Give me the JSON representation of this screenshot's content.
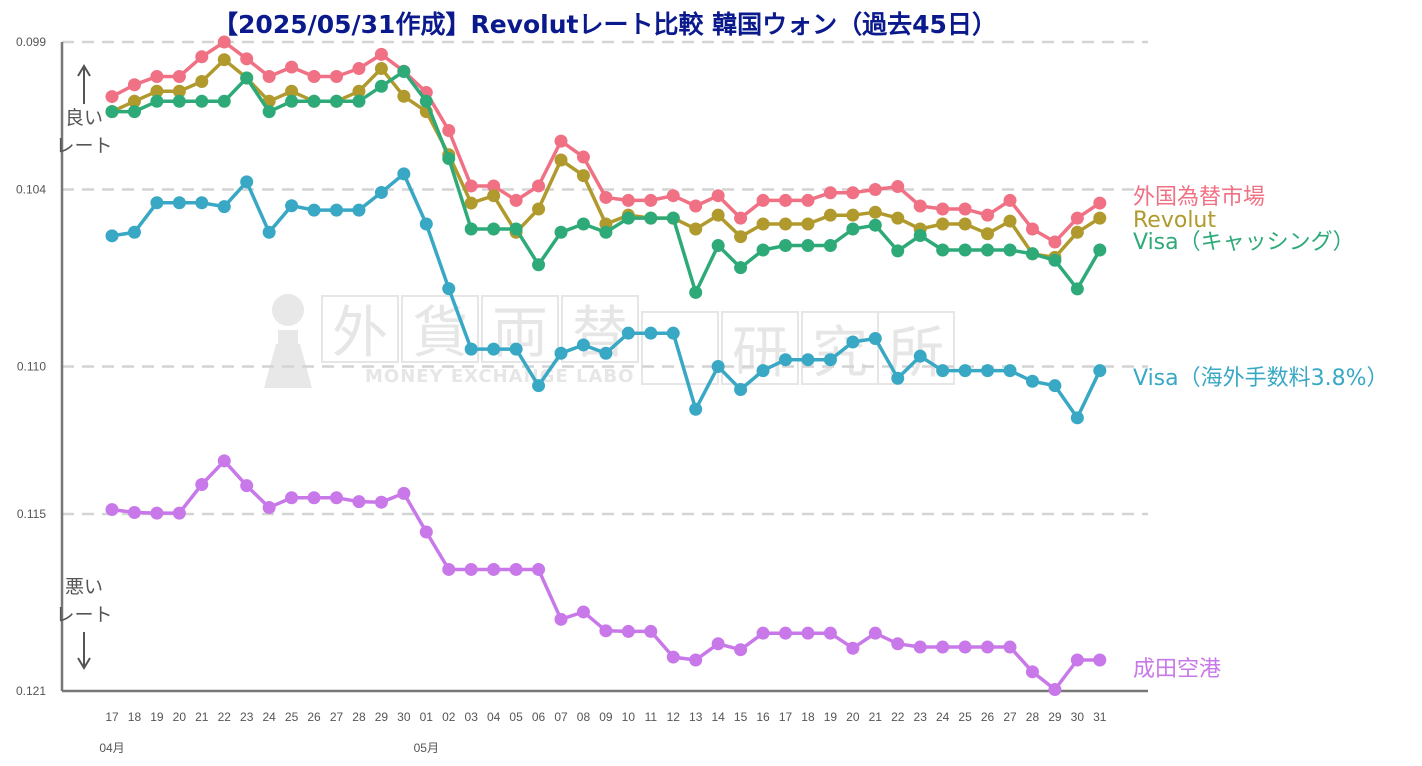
{
  "chart_data": {
    "type": "line",
    "title": "【2025/05/31作成】Revolutレート比較 韓国ウォン（過去45日）",
    "x": [
      "17",
      "18",
      "19",
      "20",
      "21",
      "22",
      "23",
      "24",
      "25",
      "26",
      "27",
      "28",
      "29",
      "30",
      "01",
      "02",
      "03",
      "04",
      "05",
      "06",
      "07",
      "08",
      "09",
      "10",
      "11",
      "12",
      "13",
      "14",
      "15",
      "16",
      "17",
      "18",
      "19",
      "20",
      "21",
      "22",
      "23",
      "24",
      "25",
      "26",
      "27",
      "28",
      "29",
      "30",
      "31"
    ],
    "month_labels": [
      {
        "label": "04月",
        "index": 0
      },
      {
        "label": "05月",
        "index": 14
      }
    ],
    "y_ticks": [
      "0.099",
      "0.104",
      "0.110",
      "0.115",
      "0.121"
    ],
    "ylim": [
      0.099,
      0.121
    ],
    "y_inverted": true,
    "grid": "horizontal-dashed",
    "annotations": {
      "better": "良い\nレート",
      "worse": "悪い\nレート"
    },
    "series": [
      {
        "name": "外国為替市場",
        "color": "#f07084",
        "values": [
          0.10085,
          0.10045,
          0.10017,
          0.10017,
          0.0995,
          0.099,
          0.09957,
          0.10017,
          0.09985,
          0.10017,
          0.10017,
          0.0999,
          0.09942,
          0.09999,
          0.10071,
          0.102,
          0.10388,
          0.10388,
          0.10437,
          0.10388,
          0.10236,
          0.1029,
          0.10427,
          0.10437,
          0.10437,
          0.10421,
          0.10456,
          0.10421,
          0.10497,
          0.10437,
          0.10437,
          0.10437,
          0.10411,
          0.10411,
          0.104,
          0.1039,
          0.10456,
          0.10466,
          0.10466,
          0.10487,
          0.10437,
          0.10534,
          0.10578,
          0.10497,
          0.10446
        ]
      },
      {
        "name": "Revolut",
        "color": "#b09a2e",
        "values": [
          0.10136,
          0.10101,
          0.10067,
          0.10067,
          0.10034,
          0.0996,
          0.10022,
          0.10101,
          0.10067,
          0.10101,
          0.10101,
          0.10067,
          0.0999,
          0.10084,
          0.10136,
          0.10282,
          0.10446,
          0.10421,
          0.10545,
          0.10466,
          0.103,
          0.10353,
          0.10517,
          0.10487,
          0.10497,
          0.10497,
          0.10534,
          0.10487,
          0.1056,
          0.10517,
          0.10517,
          0.10517,
          0.10487,
          0.10487,
          0.10477,
          0.10497,
          0.10534,
          0.10517,
          0.10517,
          0.1055,
          0.10507,
          0.10618,
          0.1063,
          0.10545,
          0.10497
        ]
      },
      {
        "name": "Visa（キャッシング）",
        "color": "#2eaa78",
        "values": [
          0.10136,
          0.10136,
          0.10101,
          0.10101,
          0.10101,
          0.10101,
          0.10022,
          0.10136,
          0.10101,
          0.10101,
          0.10101,
          0.10101,
          0.1005,
          0.1,
          0.10101,
          0.10295,
          0.10534,
          0.10534,
          0.10534,
          0.10655,
          0.10545,
          0.10517,
          0.10545,
          0.10497,
          0.10497,
          0.10497,
          0.10749,
          0.1059,
          0.10665,
          0.10605,
          0.1059,
          0.1059,
          0.1059,
          0.10534,
          0.10521,
          0.10608,
          0.10556,
          0.10605,
          0.10605,
          0.10605,
          0.10605,
          0.10618,
          0.1064,
          0.10737,
          0.10605
        ]
      },
      {
        "name": "Visa（海外手数料3.8%）",
        "color": "#38a8c4",
        "values": [
          0.10557,
          0.10545,
          0.10445,
          0.10445,
          0.10445,
          0.10458,
          0.10374,
          0.10545,
          0.10455,
          0.1047,
          0.1047,
          0.1047,
          0.1041,
          0.10347,
          0.10517,
          0.10736,
          0.10941,
          0.10941,
          0.10941,
          0.11065,
          0.10955,
          0.10927,
          0.10955,
          0.10887,
          0.10887,
          0.10887,
          0.11145,
          0.11,
          0.11078,
          0.11014,
          0.10977,
          0.10977,
          0.10977,
          0.10917,
          0.10905,
          0.1104,
          0.10965,
          0.11014,
          0.11014,
          0.11014,
          0.11014,
          0.1105,
          0.11065,
          0.11174,
          0.11014
        ]
      },
      {
        "name": "成田空港",
        "color": "#c878e8",
        "values": [
          0.11485,
          0.11495,
          0.11497,
          0.11497,
          0.114,
          0.1132,
          0.11404,
          0.11478,
          0.11445,
          0.11445,
          0.11445,
          0.11458,
          0.1146,
          0.1143,
          0.11561,
          0.11688,
          0.11688,
          0.11688,
          0.11688,
          0.11688,
          0.11857,
          0.11832,
          0.11896,
          0.11898,
          0.11898,
          0.11985,
          0.11995,
          0.1194,
          0.1196,
          0.11904,
          0.11904,
          0.11904,
          0.11904,
          0.11955,
          0.11904,
          0.1194,
          0.11951,
          0.11951,
          0.11951,
          0.11951,
          0.11951,
          0.12035,
          0.12095,
          0.11995,
          0.11995
        ]
      }
    ]
  },
  "watermark": {
    "kanji": [
      "外",
      "貨",
      "両",
      "替",
      "研",
      "究",
      "所"
    ],
    "sub": "MONEY EXCHANGE LABO"
  }
}
